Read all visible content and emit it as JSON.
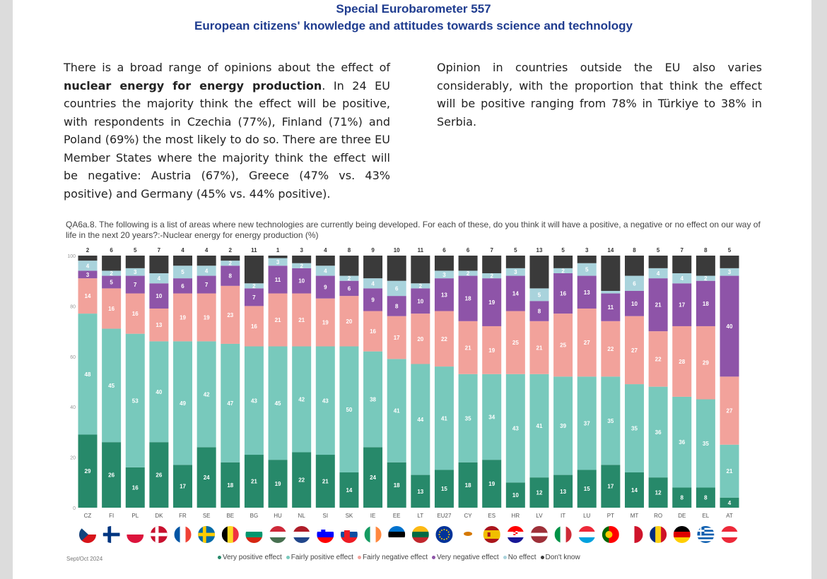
{
  "header": {
    "title": "Special Eurobarometer 557",
    "subtitle": "European citizens' knowledge and attitudes towards science and technology"
  },
  "text": {
    "left_p1": "There is a broad range of opinions about the effect of ",
    "left_bold": "nuclear energy for energy production",
    "left_p2": ". In 24 EU countries the majority think the effect will be positive, with respondents in Czechia (77%), Finland (71%) and Poland (69%) the most likely to do so. There are three EU Member States where the majority think the effect will be negative: Austria (67%), Greece (47% vs. 43% positive) and Germany (45% vs. 44% positive).",
    "right": "Opinion in countries outside the EU also varies considerably, with the proportion that think the effect will be positive ranging from 78% in Türkiye to 38% in Serbia."
  },
  "question": "QA6a.8. The following is a list of areas where new technologies are currently being developed. For each of these, do you think it will have a positive, a negative or no effect on our way of life in the next 20 years?:-Nuclear energy for energy production (%)",
  "footer": {
    "date": "Sept/Oct 2024"
  },
  "colors": {
    "very_positive": "#27896a",
    "fairly_positive": "#78c9bc",
    "fairly_negative": "#f2a29b",
    "very_negative": "#8e54a8",
    "no_effect": "#a9d3dc",
    "dont_know": "#3a3a3a"
  },
  "chart_data": {
    "type": "bar",
    "stacked": true,
    "ylim": [
      0,
      100
    ],
    "yticks": [
      0,
      20,
      40,
      60,
      80,
      100
    ],
    "categories": [
      "CZ",
      "FI",
      "PL",
      "DK",
      "FR",
      "SE",
      "BE",
      "BG",
      "HU",
      "NL",
      "SI",
      "SK",
      "IE",
      "EE",
      "LT",
      "EU27",
      "CY",
      "ES",
      "HR",
      "LV",
      "IT",
      "LU",
      "PT",
      "MT",
      "RO",
      "DE",
      "EL",
      "AT"
    ],
    "series": [
      {
        "name": "Very positive effect",
        "color_key": "very_positive",
        "values": [
          29,
          26,
          16,
          26,
          17,
          24,
          18,
          21,
          19,
          22,
          21,
          14,
          24,
          18,
          13,
          15,
          18,
          19,
          10,
          12,
          13,
          15,
          17,
          14,
          12,
          8,
          8,
          4
        ]
      },
      {
        "name": "Fairly positive effect",
        "color_key": "fairly_positive",
        "values": [
          48,
          45,
          53,
          40,
          49,
          42,
          47,
          43,
          45,
          42,
          43,
          50,
          38,
          41,
          44,
          41,
          35,
          34,
          43,
          41,
          39,
          37,
          35,
          35,
          36,
          36,
          35,
          21
        ]
      },
      {
        "name": "Fairly negative effect",
        "color_key": "fairly_negative",
        "values": [
          14,
          16,
          16,
          13,
          19,
          19,
          23,
          16,
          21,
          21,
          19,
          20,
          16,
          17,
          20,
          22,
          21,
          19,
          25,
          21,
          25,
          27,
          22,
          27,
          22,
          28,
          29,
          27
        ]
      },
      {
        "name": "Very negative effect",
        "color_key": "very_negative",
        "values": [
          3,
          5,
          7,
          10,
          6,
          7,
          8,
          7,
          11,
          10,
          9,
          6,
          9,
          8,
          10,
          13,
          18,
          19,
          14,
          8,
          16,
          13,
          11,
          10,
          21,
          17,
          18,
          40
        ]
      },
      {
        "name": "No effect",
        "color_key": "no_effect",
        "values": [
          4,
          2,
          3,
          4,
          5,
          4,
          2,
          2,
          3,
          2,
          4,
          2,
          4,
          6,
          2,
          3,
          2,
          2,
          3,
          5,
          2,
          5,
          1,
          6,
          4,
          4,
          2,
          3
        ]
      },
      {
        "name": "Don't know",
        "color_key": "dont_know",
        "values": [
          2,
          6,
          5,
          7,
          4,
          4,
          2,
          11,
          1,
          3,
          4,
          8,
          9,
          10,
          11,
          6,
          6,
          7,
          5,
          13,
          5,
          3,
          14,
          8,
          5,
          7,
          8,
          5
        ]
      }
    ],
    "label_min": 4,
    "legend_position": "bottom"
  },
  "flags": {
    "CZ": "cz",
    "FI": "fi",
    "PL": "pl",
    "DK": "dk",
    "FR": "fr",
    "SE": "se",
    "BE": "be",
    "BG": "bg",
    "HU": "hu",
    "NL": "nl",
    "SI": "si",
    "SK": "sk",
    "IE": "ie",
    "EE": "ee",
    "LT": "lt",
    "EU27": "eu",
    "CY": "cy",
    "ES": "es",
    "HR": "hr",
    "LV": "lv",
    "IT": "it",
    "LU": "lu",
    "PT": "pt",
    "MT": "mt",
    "RO": "ro",
    "DE": "de",
    "EL": "el",
    "AT": "at"
  }
}
